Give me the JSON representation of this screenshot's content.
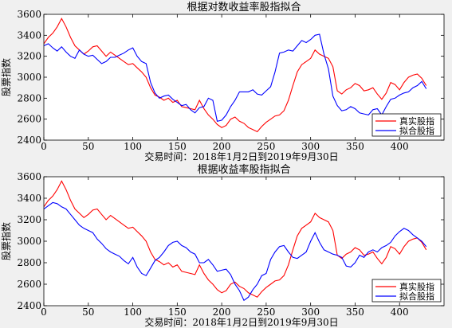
{
  "chart_data": [
    {
      "type": "line",
      "title": "根据对数收益率股指拟合",
      "xlabel": "交易时间：2018年1月2日到2019年9月30日",
      "ylabel": "股票指数",
      "xlim": [
        0,
        450
      ],
      "ylim": [
        2400,
        3600
      ],
      "xticks": [
        0,
        50,
        100,
        150,
        200,
        250,
        300,
        350,
        400
      ],
      "yticks": [
        2400,
        2600,
        2800,
        3000,
        3200,
        3400,
        3600
      ],
      "legend_position": "bottom-right",
      "series": [
        {
          "name": "真实股指",
          "color": "#ff0000",
          "x": [
            0,
            5,
            10,
            15,
            20,
            25,
            30,
            35,
            40,
            45,
            50,
            55,
            60,
            65,
            70,
            75,
            80,
            85,
            90,
            95,
            100,
            105,
            110,
            115,
            120,
            125,
            130,
            135,
            140,
            145,
            150,
            155,
            160,
            165,
            170,
            175,
            180,
            185,
            190,
            195,
            200,
            205,
            210,
            215,
            220,
            225,
            230,
            235,
            240,
            245,
            250,
            255,
            260,
            265,
            270,
            275,
            280,
            285,
            290,
            295,
            300,
            305,
            310,
            315,
            320,
            325,
            330,
            335,
            340,
            345,
            350,
            355,
            360,
            365,
            370,
            375,
            380,
            385,
            390,
            395,
            400,
            405,
            410,
            415,
            420,
            425,
            430
          ],
          "y": [
            3320,
            3380,
            3420,
            3480,
            3560,
            3480,
            3380,
            3300,
            3260,
            3220,
            3250,
            3290,
            3300,
            3250,
            3200,
            3240,
            3210,
            3180,
            3150,
            3120,
            3130,
            3090,
            3050,
            3000,
            2900,
            2830,
            2810,
            2780,
            2800,
            2760,
            2780,
            2720,
            2710,
            2700,
            2690,
            2780,
            2700,
            2640,
            2600,
            2550,
            2520,
            2540,
            2600,
            2620,
            2580,
            2560,
            2520,
            2500,
            2480,
            2530,
            2570,
            2600,
            2630,
            2640,
            2680,
            2780,
            2920,
            3050,
            3120,
            3150,
            3180,
            3260,
            3220,
            3200,
            3180,
            3100,
            2870,
            2840,
            2880,
            2900,
            2940,
            2920,
            2870,
            2880,
            2900,
            2840,
            2790,
            2850,
            2950,
            2930,
            2880,
            2950,
            3000,
            3020,
            3030,
            2990,
            2920
          ]
        },
        {
          "name": "拟合股指",
          "color": "#0000ff",
          "x": [
            0,
            5,
            10,
            15,
            20,
            25,
            30,
            35,
            40,
            45,
            50,
            55,
            60,
            65,
            70,
            75,
            80,
            85,
            90,
            95,
            100,
            105,
            110,
            115,
            120,
            125,
            130,
            135,
            140,
            145,
            150,
            155,
            160,
            165,
            170,
            175,
            180,
            185,
            190,
            195,
            200,
            205,
            210,
            215,
            220,
            225,
            230,
            235,
            240,
            245,
            250,
            255,
            260,
            265,
            270,
            275,
            280,
            285,
            290,
            295,
            300,
            305,
            310,
            315,
            320,
            325,
            330,
            335,
            340,
            345,
            350,
            355,
            360,
            365,
            370,
            375,
            380,
            385,
            390,
            395,
            400,
            405,
            410,
            415,
            420,
            425,
            430
          ],
          "y": [
            3300,
            3320,
            3280,
            3250,
            3290,
            3240,
            3200,
            3180,
            3260,
            3220,
            3200,
            3210,
            3170,
            3130,
            3150,
            3190,
            3190,
            3210,
            3230,
            3260,
            3280,
            3200,
            3150,
            3130,
            2950,
            2850,
            2800,
            2820,
            2830,
            2790,
            2760,
            2730,
            2740,
            2690,
            2660,
            2710,
            2720,
            2800,
            2780,
            2580,
            2590,
            2640,
            2720,
            2780,
            2860,
            2860,
            2860,
            2880,
            2840,
            2830,
            2870,
            2910,
            3050,
            3230,
            3240,
            3260,
            3250,
            3300,
            3350,
            3330,
            3360,
            3400,
            3410,
            3220,
            3080,
            2820,
            2730,
            2680,
            2690,
            2720,
            2700,
            2660,
            2650,
            2640,
            2690,
            2700,
            2640,
            2720,
            2790,
            2800,
            2830,
            2850,
            2860,
            2900,
            2920,
            2960,
            2890
          ]
        }
      ]
    },
    {
      "type": "line",
      "title": "根据收益率股指拟合",
      "xlabel": "交易时间：2018年1月2日到2019年9月30日",
      "ylabel": "股票指数",
      "xlim": [
        0,
        450
      ],
      "ylim": [
        2400,
        3600
      ],
      "xticks": [
        0,
        50,
        100,
        150,
        200,
        250,
        300,
        350,
        400
      ],
      "yticks": [
        2400,
        2600,
        2800,
        3000,
        3200,
        3400,
        3600
      ],
      "legend_position": "bottom-right",
      "series": [
        {
          "name": "真实股指",
          "color": "#ff0000",
          "x": [
            0,
            5,
            10,
            15,
            20,
            25,
            30,
            35,
            40,
            45,
            50,
            55,
            60,
            65,
            70,
            75,
            80,
            85,
            90,
            95,
            100,
            105,
            110,
            115,
            120,
            125,
            130,
            135,
            140,
            145,
            150,
            155,
            160,
            165,
            170,
            175,
            180,
            185,
            190,
            195,
            200,
            205,
            210,
            215,
            220,
            225,
            230,
            235,
            240,
            245,
            250,
            255,
            260,
            265,
            270,
            275,
            280,
            285,
            290,
            295,
            300,
            305,
            310,
            315,
            320,
            325,
            330,
            335,
            340,
            345,
            350,
            355,
            360,
            365,
            370,
            375,
            380,
            385,
            390,
            395,
            400,
            405,
            410,
            415,
            420,
            425,
            430
          ],
          "y": [
            3320,
            3380,
            3420,
            3480,
            3560,
            3480,
            3380,
            3300,
            3260,
            3220,
            3250,
            3290,
            3300,
            3250,
            3200,
            3240,
            3210,
            3180,
            3150,
            3120,
            3130,
            3090,
            3050,
            3000,
            2900,
            2830,
            2810,
            2780,
            2800,
            2760,
            2780,
            2720,
            2710,
            2700,
            2690,
            2780,
            2700,
            2640,
            2600,
            2550,
            2520,
            2540,
            2600,
            2620,
            2580,
            2560,
            2520,
            2500,
            2480,
            2530,
            2570,
            2600,
            2630,
            2640,
            2680,
            2780,
            2920,
            3050,
            3120,
            3150,
            3180,
            3260,
            3220,
            3200,
            3180,
            3100,
            2870,
            2840,
            2880,
            2900,
            2940,
            2920,
            2870,
            2880,
            2900,
            2840,
            2790,
            2850,
            2950,
            2930,
            2880,
            2950,
            3000,
            3020,
            3030,
            2990,
            2920
          ]
        },
        {
          "name": "拟合股指",
          "color": "#0000ff",
          "x": [
            0,
            5,
            10,
            15,
            20,
            25,
            30,
            35,
            40,
            45,
            50,
            55,
            60,
            65,
            70,
            75,
            80,
            85,
            90,
            95,
            100,
            105,
            110,
            115,
            120,
            125,
            130,
            135,
            140,
            145,
            150,
            155,
            160,
            165,
            170,
            175,
            180,
            185,
            190,
            195,
            200,
            205,
            210,
            215,
            220,
            225,
            230,
            235,
            240,
            245,
            250,
            255,
            260,
            265,
            270,
            275,
            280,
            285,
            290,
            295,
            300,
            305,
            310,
            315,
            320,
            325,
            330,
            335,
            340,
            345,
            350,
            355,
            360,
            365,
            370,
            375,
            380,
            385,
            390,
            395,
            400,
            405,
            410,
            415,
            420,
            425,
            430
          ],
          "y": [
            3300,
            3330,
            3360,
            3350,
            3320,
            3300,
            3250,
            3200,
            3150,
            3120,
            3100,
            3080,
            3020,
            2980,
            2930,
            2900,
            2880,
            2860,
            2820,
            2790,
            2850,
            2760,
            2700,
            2680,
            2750,
            2820,
            2850,
            2900,
            2960,
            2990,
            3000,
            2960,
            2940,
            2900,
            2880,
            2800,
            2800,
            2830,
            2780,
            2720,
            2730,
            2740,
            2690,
            2600,
            2540,
            2450,
            2480,
            2550,
            2600,
            2680,
            2700,
            2830,
            2900,
            2950,
            2960,
            2900,
            2850,
            2840,
            2870,
            2900,
            3000,
            3080,
            2990,
            2920,
            2900,
            2880,
            2870,
            2850,
            2770,
            2760,
            2800,
            2870,
            2850,
            2900,
            2920,
            2900,
            2940,
            2960,
            2990,
            3050,
            3090,
            3120,
            3100,
            3060,
            3030,
            3000,
            2950
          ]
        }
      ]
    }
  ]
}
